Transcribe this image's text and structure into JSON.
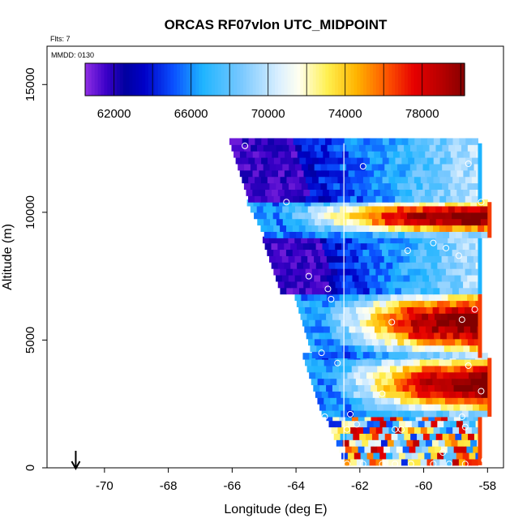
{
  "chart_data": {
    "type": "heatmap",
    "title": "ORCAS RF07vlon UTC_MIDPOINT",
    "annotations": {
      "flights": "Flts: 7",
      "date": "MMDD: 0130"
    },
    "xlabel": "Longitude (deg E)",
    "ylabel": "Altitude (m)",
    "xlim": [
      -71.8,
      -57.5
    ],
    "ylim": [
      0,
      16500
    ],
    "x_ticks": [
      -70,
      -68,
      -66,
      -64,
      -62,
      -60,
      -58
    ],
    "x_tick_labels": [
      "-70",
      "-68",
      "-66",
      "-64",
      "-62",
      "-60",
      "-58"
    ],
    "y_ticks": [
      0,
      5000,
      10000,
      15000
    ],
    "y_tick_labels": [
      "0",
      "5000",
      "10000",
      "15000"
    ],
    "colorbar": {
      "range": [
        60500,
        80200
      ],
      "ticks": [
        62000,
        66000,
        70000,
        74000,
        78000
      ],
      "tick_labels": [
        "62000",
        "66000",
        "70000",
        "74000",
        "78000"
      ],
      "stops": [
        {
          "v": 60500,
          "c": "#8a2be2"
        },
        {
          "v": 61500,
          "c": "#3c00c8"
        },
        {
          "v": 62500,
          "c": "#0000a0"
        },
        {
          "v": 63500,
          "c": "#0000c8"
        },
        {
          "v": 65000,
          "c": "#0a50ff"
        },
        {
          "v": 66500,
          "c": "#1eb4ff"
        },
        {
          "v": 68500,
          "c": "#78c8ff"
        },
        {
          "v": 70500,
          "c": "#dcf0ff"
        },
        {
          "v": 71500,
          "c": "#fffff0"
        },
        {
          "v": 73000,
          "c": "#fff050"
        },
        {
          "v": 74500,
          "c": "#ffb400"
        },
        {
          "v": 76000,
          "c": "#ff5a00"
        },
        {
          "v": 77500,
          "c": "#e60000"
        },
        {
          "v": 79000,
          "c": "#b40000"
        },
        {
          "v": 80200,
          "c": "#820000"
        }
      ]
    },
    "midpoint_longitude": -62.5,
    "wind_arrow_longitude": -70.9,
    "profiles": [
      {
        "lon_min": -62.5,
        "lon_max": -58.3,
        "alt_min": 100,
        "alt_max": 2000,
        "kind": "mixed",
        "mean": 73000
      },
      {
        "lon_min": -63.2,
        "lon_max": -58.0,
        "alt_min": 2000,
        "alt_max": 4300,
        "kind": "warm",
        "mean": 75500
      },
      {
        "lon_min": -63.5,
        "lon_max": -58.3,
        "alt_min": 4300,
        "alt_max": 6800,
        "kind": "warm",
        "mean": 75000
      },
      {
        "lon_min": -64.5,
        "lon_max": -58.3,
        "alt_min": 6800,
        "alt_max": 9000,
        "kind": "cool",
        "mean": 64000
      },
      {
        "lon_min": -65.0,
        "lon_max": -58.0,
        "alt_min": 9000,
        "alt_max": 10400,
        "kind": "warm",
        "mean": 74000
      },
      {
        "lon_min": -65.5,
        "lon_max": -58.3,
        "alt_min": 10400,
        "alt_max": 12700,
        "kind": "cool",
        "mean": 67000
      }
    ],
    "sample_points": [
      {
        "lon": -65.6,
        "alt": 12600
      },
      {
        "lon": -58.6,
        "alt": 11900
      },
      {
        "lon": -61.9,
        "alt": 11800
      },
      {
        "lon": -64.3,
        "alt": 10400
      },
      {
        "lon": -58.2,
        "alt": 10400
      },
      {
        "lon": -59.7,
        "alt": 8800
      },
      {
        "lon": -59.3,
        "alt": 8600
      },
      {
        "lon": -60.5,
        "alt": 8500
      },
      {
        "lon": -58.9,
        "alt": 8300
      },
      {
        "lon": -63.6,
        "alt": 7500
      },
      {
        "lon": -63.0,
        "alt": 7000
      },
      {
        "lon": -62.9,
        "alt": 6600
      },
      {
        "lon": -58.4,
        "alt": 6200
      },
      {
        "lon": -58.8,
        "alt": 5800
      },
      {
        "lon": -61.0,
        "alt": 5700
      },
      {
        "lon": -63.2,
        "alt": 4500
      },
      {
        "lon": -62.7,
        "alt": 4100
      },
      {
        "lon": -58.6,
        "alt": 4000
      },
      {
        "lon": -58.2,
        "alt": 3000
      },
      {
        "lon": -61.3,
        "alt": 2900
      },
      {
        "lon": -62.3,
        "alt": 2100
      },
      {
        "lon": -63.1,
        "alt": 2000
      },
      {
        "lon": -58.8,
        "alt": 2000
      },
      {
        "lon": -62.1,
        "alt": 1700
      },
      {
        "lon": -62.4,
        "alt": 1500
      },
      {
        "lon": -60.9,
        "alt": 1500
      },
      {
        "lon": -60.7,
        "alt": 1500
      },
      {
        "lon": -58.7,
        "alt": 1600
      },
      {
        "lon": -59.4,
        "alt": 600
      },
      {
        "lon": -58.1,
        "alt": 300
      },
      {
        "lon": -62.9,
        "alt": 150
      },
      {
        "lon": -62.6,
        "alt": 150
      },
      {
        "lon": -62.4,
        "alt": 150
      },
      {
        "lon": -61.9,
        "alt": 150
      },
      {
        "lon": -61.3,
        "alt": 150
      },
      {
        "lon": -60.9,
        "alt": 150
      },
      {
        "lon": -60.4,
        "alt": 150
      },
      {
        "lon": -59.7,
        "alt": 150
      },
      {
        "lon": -59.2,
        "alt": 150
      },
      {
        "lon": -58.7,
        "alt": 150
      }
    ]
  }
}
